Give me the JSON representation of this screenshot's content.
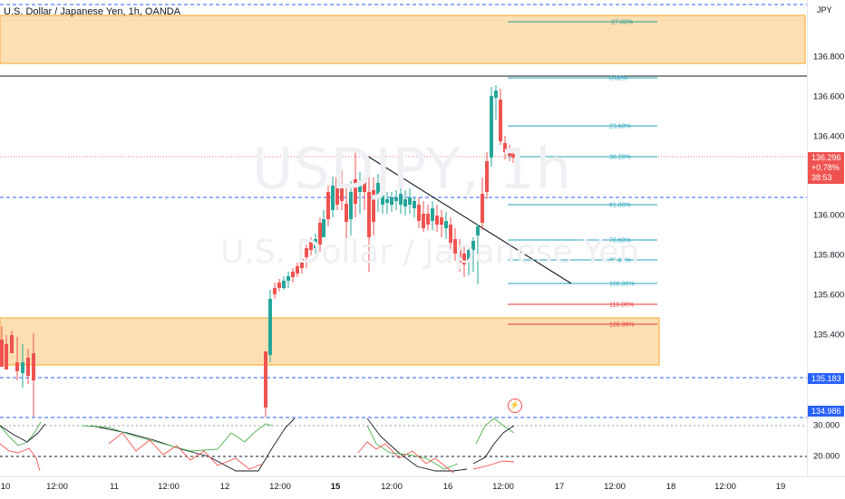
{
  "header": {
    "title": "U.S. Dollar / Japanese Yen, 1h, OANDA"
  },
  "watermark": {
    "symbol": "USDJPY, 1h",
    "description": "U.S. Dollar / Japanese Yen"
  },
  "price_axis": {
    "currency": "JPY",
    "labels": [
      "136.800",
      "136.600",
      "136.400",
      "136.000",
      "135.800",
      "135.600",
      "135.400",
      "30.000",
      "20.000"
    ],
    "current_price": {
      "value": "136.296",
      "change": "+0.78%",
      "countdown": "38:53",
      "color": "#ef5350"
    },
    "level_tags": [
      {
        "value": "135.183",
        "color": "#2962ff"
      },
      {
        "value": "134.986",
        "color": "#2962ff"
      }
    ]
  },
  "time_axis": {
    "labels": [
      {
        "text": "10",
        "bold": false
      },
      {
        "text": "12:00",
        "bold": false
      },
      {
        "text": "11",
        "bold": false
      },
      {
        "text": "12:00",
        "bold": false
      },
      {
        "text": "12",
        "bold": false
      },
      {
        "text": "12:00",
        "bold": false
      },
      {
        "text": "15",
        "bold": true
      },
      {
        "text": "12:00",
        "bold": false
      },
      {
        "text": "16",
        "bold": false
      },
      {
        "text": "12:00",
        "bold": false
      },
      {
        "text": "17",
        "bold": false
      },
      {
        "text": "12:00",
        "bold": false
      },
      {
        "text": "18",
        "bold": false
      },
      {
        "text": "12:00",
        "bold": false
      },
      {
        "text": "19",
        "bold": false
      }
    ]
  },
  "fibonacci": {
    "levels": [
      {
        "label": "-27.00%",
        "color": "#2a9d8f"
      },
      {
        "label": "0.00%",
        "color": "#26a6bd"
      },
      {
        "label": "23.60%",
        "color": "#26a6bd"
      },
      {
        "label": "38.20%",
        "color": "#26a6bd"
      },
      {
        "label": "61.80%",
        "color": "#26a6bd"
      },
      {
        "label": "78.60%",
        "color": "#26a6bd"
      },
      {
        "label": "88.60%",
        "color": "#26a6bd"
      },
      {
        "label": "100.00%",
        "color": "#26a6bd"
      },
      {
        "label": "110.00%",
        "color": "#e53935"
      },
      {
        "label": "120.00%",
        "color": "#e53935"
      }
    ]
  },
  "zones": {
    "supply_color": "#fce0b4",
    "border_color": "#f5a623"
  },
  "colors": {
    "up": "#26a69a",
    "down": "#ef5350",
    "line": "#131722",
    "level_line": "#2962ff"
  },
  "icons": {
    "flash": "flash-icon"
  }
}
